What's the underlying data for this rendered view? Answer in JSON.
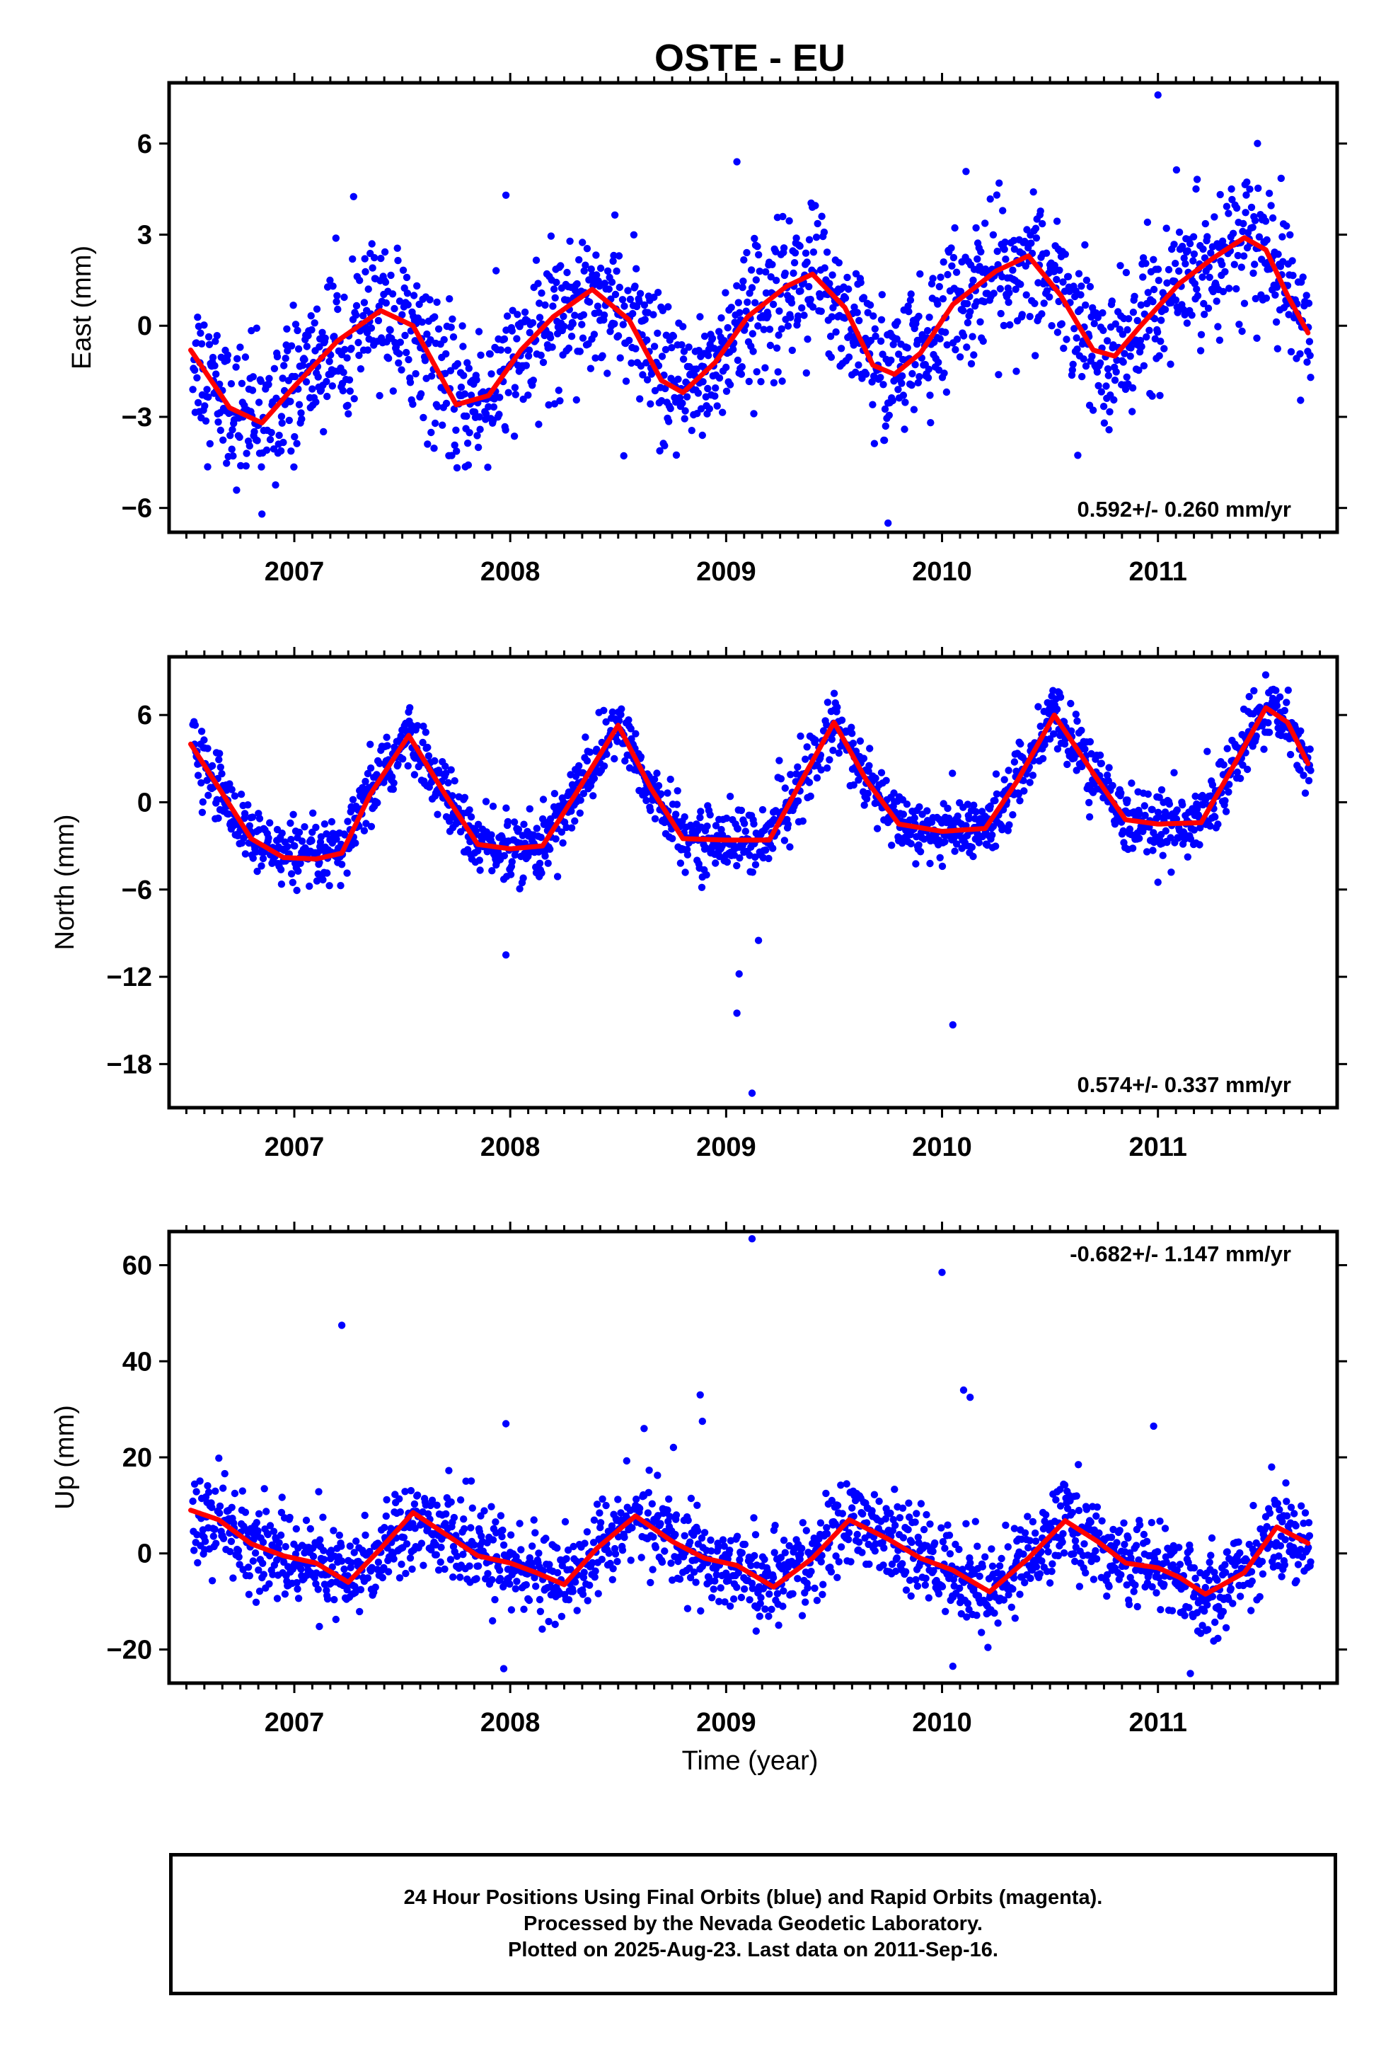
{
  "chart_data": {
    "type": "scatter",
    "title": "OSTE - EU",
    "xlabel": "Time (year)",
    "x_tick_labels": [
      "2007",
      "2008",
      "2009",
      "2010",
      "2011"
    ],
    "colors": {
      "points": "#0000ff",
      "fit": "#ff0000",
      "frame": "#000000"
    },
    "panels": [
      {
        "id": "east",
        "ylabel": "East (mm)",
        "ylim": [
          -6.8,
          8.0
        ],
        "yticks": [
          -6,
          -3,
          0,
          3,
          6
        ],
        "y_tick_labels": [
          "−6",
          "−3",
          "0",
          "3",
          "6"
        ],
        "rate_label": "0.592+/- 0.260 mm/yr",
        "rate_position": "bottom-right",
        "fit": {
          "x": [
            2006.52,
            2006.7,
            2006.85,
            2007.0,
            2007.2,
            2007.4,
            2007.55,
            2007.75,
            2007.9,
            2008.05,
            2008.2,
            2008.38,
            2008.55,
            2008.7,
            2008.8,
            2008.95,
            2009.1,
            2009.28,
            2009.4,
            2009.55,
            2009.68,
            2009.78,
            2009.9,
            2010.05,
            2010.25,
            2010.4,
            2010.55,
            2010.7,
            2010.8,
            2010.92,
            2011.1,
            2011.25,
            2011.4,
            2011.5,
            2011.6,
            2011.7
          ],
          "y": [
            -0.8,
            -2.7,
            -3.2,
            -2.0,
            -0.5,
            0.5,
            0.0,
            -2.6,
            -2.3,
            -0.8,
            0.3,
            1.2,
            0.2,
            -1.8,
            -2.2,
            -1.2,
            0.3,
            1.3,
            1.7,
            0.6,
            -1.3,
            -1.6,
            -0.9,
            0.7,
            1.8,
            2.3,
            1.0,
            -0.8,
            -1.0,
            0.0,
            1.4,
            2.2,
            2.9,
            2.5,
            1.0,
            -0.3
          ]
        },
        "outliers": [
          {
            "x": 2011.0,
            "y": 7.6
          },
          {
            "x": 2009.05,
            "y": 5.4
          },
          {
            "x": 2007.98,
            "y": 4.3
          },
          {
            "x": 2009.75,
            "y": -6.5
          },
          {
            "x": 2006.85,
            "y": -6.2
          }
        ]
      },
      {
        "id": "north",
        "ylabel": "North (mm)",
        "ylim": [
          -21.0,
          10.0
        ],
        "yticks": [
          -18,
          -12,
          -6,
          0,
          6
        ],
        "y_tick_labels": [
          "−18",
          "−12",
          "−6",
          "0",
          "6"
        ],
        "rate_label": "0.574+/- 0.337 mm/yr",
        "rate_position": "bottom-right",
        "fit": {
          "x": [
            2006.52,
            2006.65,
            2006.8,
            2006.95,
            2007.1,
            2007.22,
            2007.35,
            2007.53,
            2007.7,
            2007.85,
            2008.0,
            2008.15,
            2008.3,
            2008.5,
            2008.65,
            2008.8,
            2009.0,
            2009.2,
            2009.35,
            2009.5,
            2009.65,
            2009.8,
            2010.0,
            2010.2,
            2010.35,
            2010.52,
            2010.7,
            2010.85,
            2011.0,
            2011.2,
            2011.35,
            2011.5,
            2011.6,
            2011.7
          ],
          "y": [
            4.0,
            1.0,
            -2.5,
            -3.8,
            -3.9,
            -3.5,
            0.5,
            4.6,
            0.5,
            -2.9,
            -3.2,
            -3.0,
            0.5,
            5.3,
            1.0,
            -2.5,
            -2.6,
            -2.6,
            1.5,
            5.5,
            1.5,
            -1.5,
            -2.0,
            -1.8,
            1.5,
            6.0,
            2.0,
            -1.2,
            -1.5,
            -1.4,
            2.5,
            6.5,
            5.5,
            2.5
          ]
        },
        "outliers": [
          {
            "x": 2009.12,
            "y": -20.0
          },
          {
            "x": 2009.05,
            "y": -14.5
          },
          {
            "x": 2009.06,
            "y": -11.8
          },
          {
            "x": 2009.15,
            "y": -9.5
          },
          {
            "x": 2010.05,
            "y": -15.3
          },
          {
            "x": 2007.98,
            "y": -10.5
          },
          {
            "x": 2011.0,
            "y": -5.5
          }
        ]
      },
      {
        "id": "up",
        "ylabel": "Up (mm)",
        "ylim": [
          -27,
          67
        ],
        "yticks": [
          -20,
          0,
          20,
          40,
          60
        ],
        "y_tick_labels": [
          "−20",
          "0",
          "20",
          "40",
          "60"
        ],
        "rate_label": "-0.682+/- 1.147 mm/yr",
        "rate_position": "top-right",
        "fit": {
          "x": [
            2006.52,
            2006.65,
            2006.8,
            2006.95,
            2007.1,
            2007.25,
            2007.4,
            2007.55,
            2007.7,
            2007.85,
            2008.0,
            2008.12,
            2008.25,
            2008.4,
            2008.58,
            2008.75,
            2008.9,
            2009.05,
            2009.22,
            2009.4,
            2009.57,
            2009.75,
            2009.9,
            2010.05,
            2010.22,
            2010.4,
            2010.57,
            2010.72,
            2010.85,
            2011.0,
            2011.1,
            2011.22,
            2011.4,
            2011.55,
            2011.7
          ],
          "y": [
            9.0,
            7.0,
            2.0,
            -0.5,
            -2.0,
            -6.0,
            1.0,
            8.5,
            4.0,
            -0.5,
            -2.0,
            -4.0,
            -6.5,
            1.0,
            7.8,
            2.5,
            -1.0,
            -2.5,
            -7.0,
            -1.0,
            7.0,
            3.0,
            -1.0,
            -3.5,
            -8.0,
            -1.0,
            6.8,
            2.5,
            -2.0,
            -3.0,
            -5.0,
            -8.5,
            -4.0,
            5.5,
            2.0
          ]
        },
        "outliers": [
          {
            "x": 2007.22,
            "y": 47.5
          },
          {
            "x": 2009.12,
            "y": 65.5
          },
          {
            "x": 2010.0,
            "y": 58.5
          },
          {
            "x": 2010.1,
            "y": 34.0
          },
          {
            "x": 2010.13,
            "y": 32.5
          },
          {
            "x": 2008.88,
            "y": 33.0
          },
          {
            "x": 2008.89,
            "y": 27.5
          },
          {
            "x": 2007.98,
            "y": 27.0
          },
          {
            "x": 2008.62,
            "y": 26.0
          },
          {
            "x": 2010.98,
            "y": 26.5
          },
          {
            "x": 2010.05,
            "y": -23.5
          },
          {
            "x": 2007.97,
            "y": -24.0
          },
          {
            "x": 2011.15,
            "y": -25.0
          }
        ]
      }
    ]
  },
  "footer": {
    "line1": "24 Hour Positions Using Final Orbits (blue) and Rapid Orbits (magenta).",
    "line2": "Processed by the Nevada Geodetic Laboratory.",
    "line3": "Plotted on 2025-Aug-23. Last data on 2011-Sep-16."
  }
}
